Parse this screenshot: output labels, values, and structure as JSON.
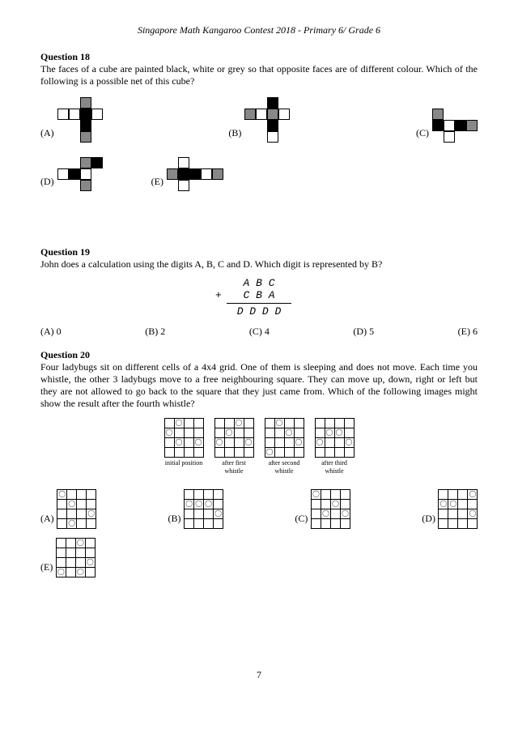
{
  "header": "Singapore Math Kangaroo Contest 2018 - Primary 6/ Grade 6",
  "page_number": "7",
  "q18": {
    "title": "Question 18",
    "text": "The faces of a cube are painted black, white or grey so that opposite faces are of different colour. Which of the following is a possible net of this cube?",
    "labels": {
      "A": "(A)",
      "B": "(B)",
      "C": "(C)",
      "D": "(D)",
      "E": "(E)"
    },
    "nets": {
      "A": {
        "cols": 4,
        "cells": [
          "e",
          "e",
          "g",
          "e",
          "w",
          "w",
          "b",
          "w",
          "e",
          "e",
          "b",
          "e",
          "e",
          "e",
          "g",
          "e"
        ]
      },
      "B": {
        "cols": 4,
        "cells": [
          "e",
          "e",
          "b",
          "e",
          "g",
          "w",
          "g",
          "w",
          "e",
          "e",
          "b",
          "e",
          "e",
          "e",
          "w",
          "e"
        ]
      },
      "C": {
        "cols": 4,
        "cells": [
          "g",
          "e",
          "e",
          "e",
          "b",
          "w",
          "b",
          "g",
          "e",
          "w",
          "e",
          "e"
        ]
      },
      "D": {
        "cols": 4,
        "cells": [
          "e",
          "e",
          "g",
          "b",
          "w",
          "b",
          "w",
          "e",
          "e",
          "e",
          "g",
          "e"
        ]
      },
      "E": {
        "cols": 5,
        "cells": [
          "e",
          "w",
          "e",
          "e",
          "e",
          "g",
          "b",
          "b",
          "w",
          "g",
          "e",
          "w",
          "e",
          "e",
          "e"
        ]
      }
    }
  },
  "q19": {
    "title": "Question 19",
    "text": "John does a calculation using the digits A, B, C and D. Which digit is represented by B?",
    "calc": {
      "line1": "A B C",
      "plus": "+",
      "line2": "C B A",
      "result": "D D D D"
    },
    "labels": {
      "A": "(A) 0",
      "B": "(B) 2",
      "C": "(C) 4",
      "D": "(D) 5",
      "E": "(E) 6"
    }
  },
  "q20": {
    "title": "Question 20",
    "text": "Four ladybugs sit on different cells of a 4x4 grid. One of them is sleeping and does not move. Each time you whistle, the other 3 ladybugs move to a free neighbouring square. They can move up, down, right or left but they are not allowed to go back to the square that they just came from. Which of the following images might show the result after the fourth whistle?",
    "seq_labels": {
      "s0": "initial position",
      "s1": "after first\nwhistle",
      "s2": "after second\nwhistle",
      "s3": "after third\nwhistle"
    },
    "seq_grids": {
      "s0": [
        [
          0,
          1
        ],
        [
          1,
          0
        ],
        [
          2,
          1
        ],
        [
          2,
          3
        ]
      ],
      "s1": [
        [
          0,
          2
        ],
        [
          1,
          1
        ],
        [
          2,
          0
        ],
        [
          2,
          3
        ]
      ],
      "s2": [
        [
          0,
          1
        ],
        [
          1,
          2
        ],
        [
          2,
          3
        ],
        [
          3,
          0
        ]
      ],
      "s3": [
        [
          1,
          1
        ],
        [
          1,
          2
        ],
        [
          2,
          0
        ],
        [
          2,
          3
        ]
      ]
    },
    "labels": {
      "A": "(A)",
      "B": "(B)",
      "C": "(C)",
      "D": "(D)",
      "E": "(E)"
    },
    "grids": {
      "A": [
        [
          0,
          0
        ],
        [
          1,
          1
        ],
        [
          2,
          3
        ],
        [
          3,
          1
        ]
      ],
      "B": [
        [
          1,
          0
        ],
        [
          1,
          1
        ],
        [
          1,
          2
        ],
        [
          2,
          3
        ]
      ],
      "C": [
        [
          0,
          0
        ],
        [
          1,
          2
        ],
        [
          2,
          1
        ],
        [
          2,
          3
        ]
      ],
      "D": [
        [
          0,
          3
        ],
        [
          1,
          0
        ],
        [
          1,
          1
        ],
        [
          2,
          3
        ]
      ],
      "E": [
        [
          0,
          2
        ],
        [
          2,
          3
        ],
        [
          3,
          0
        ],
        [
          3,
          2
        ]
      ]
    }
  }
}
